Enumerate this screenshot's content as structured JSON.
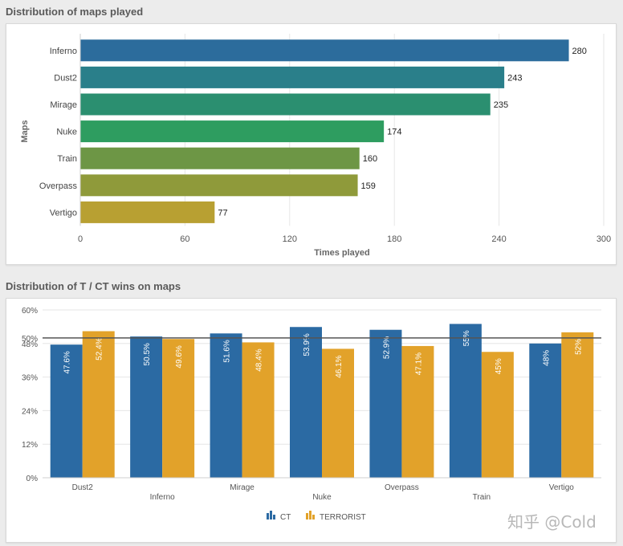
{
  "chart_data": [
    {
      "type": "bar",
      "orientation": "horizontal",
      "title": "Distribution of maps played",
      "xlabel": "Times played",
      "ylabel": "Maps",
      "categories": [
        "Inferno",
        "Dust2",
        "Mirage",
        "Nuke",
        "Train",
        "Overpass",
        "Vertigo"
      ],
      "values": [
        280,
        243,
        235,
        174,
        160,
        159,
        77
      ],
      "xlim": [
        0,
        300
      ],
      "xticks": [
        "0",
        "60",
        "120",
        "180",
        "240",
        "300"
      ],
      "colors": [
        "#2c6c9c",
        "#2a7f8a",
        "#2b8f70",
        "#2e9d60",
        "#6d9645",
        "#8f9a3a",
        "#b8a032"
      ],
      "grid": true
    },
    {
      "type": "bar",
      "orientation": "vertical",
      "title": "Distribution of T / CT wins on maps",
      "categories": [
        "Dust2",
        "Inferno",
        "Mirage",
        "Nuke",
        "Overpass",
        "Train",
        "Vertigo"
      ],
      "series": [
        {
          "name": "CT",
          "color": "#2b6aa3",
          "values": [
            47.6,
            50.5,
            51.6,
            53.9,
            52.9,
            55,
            48
          ],
          "labels": [
            "47.6%",
            "50.5%",
            "51.6%",
            "53.9%",
            "52.9%",
            "55%",
            "48%"
          ]
        },
        {
          "name": "TERRORIST",
          "color": "#e2a22a",
          "values": [
            52.4,
            49.6,
            48.4,
            46.1,
            47.1,
            45,
            52
          ],
          "labels": [
            "52.4%",
            "49.6%",
            "48.4%",
            "46.1%",
            "47.1%",
            "45%",
            "52%"
          ]
        }
      ],
      "ylim": [
        0,
        60
      ],
      "yticks": [
        "0%",
        "12%",
        "24%",
        "36%",
        "48%",
        "60%"
      ],
      "reference_line": {
        "value": 50,
        "label": "50%"
      },
      "legend_position": "bottom-center",
      "grid": true
    }
  ],
  "watermark": "知乎 @Cold"
}
